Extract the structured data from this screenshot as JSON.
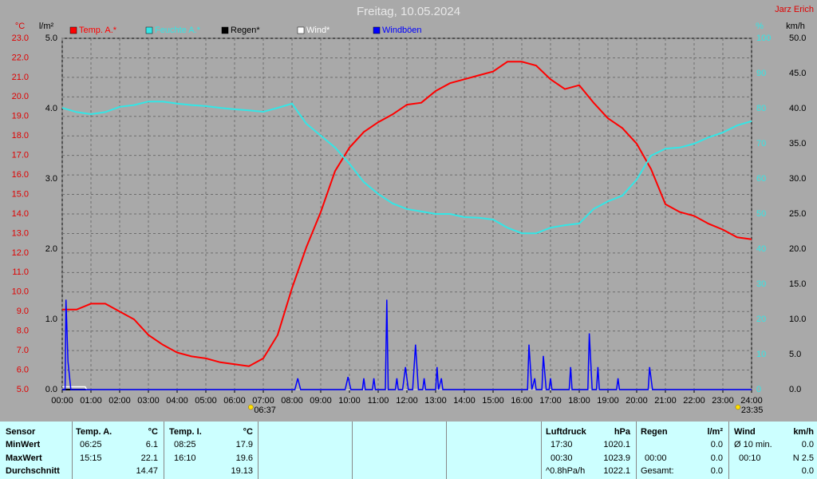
{
  "chart_data": {
    "type": "line",
    "title": "Freitag, 10.05.2024",
    "author": "Jarz Erich",
    "axis_units": {
      "y": "°C",
      "y2": "l/m²",
      "y3": "%",
      "y4": "km/h"
    },
    "x": [
      0,
      0.5,
      1,
      1.5,
      2,
      2.5,
      3,
      3.5,
      4,
      4.5,
      5,
      5.5,
      6,
      6.5,
      7,
      7.5,
      8,
      8.5,
      9,
      9.5,
      10,
      10.5,
      11,
      11.5,
      12,
      12.5,
      13,
      13.5,
      14,
      14.5,
      15,
      15.5,
      16,
      16.5,
      17,
      17.5,
      18,
      18.5,
      19,
      19.5,
      20,
      20.5,
      21,
      21.5,
      22,
      22.5,
      23,
      23.5,
      24
    ],
    "xlim": [
      0,
      24
    ],
    "xticks": [
      {
        "value": 0,
        "label": "00:00"
      },
      {
        "value": 1,
        "label": "01:00"
      },
      {
        "value": 2,
        "label": "02:00"
      },
      {
        "value": 3,
        "label": "03:00"
      },
      {
        "value": 4,
        "label": "04:00"
      },
      {
        "value": 5,
        "label": "05:00"
      },
      {
        "value": 6,
        "label": "06:00"
      },
      {
        "value": 7,
        "label": "07:00"
      },
      {
        "value": 8,
        "label": "08:00"
      },
      {
        "value": 9,
        "label": "09:00"
      },
      {
        "value": 10,
        "label": "10:00"
      },
      {
        "value": 11,
        "label": "11:00"
      },
      {
        "value": 12,
        "label": "12:00"
      },
      {
        "value": 13,
        "label": "13:00"
      },
      {
        "value": 14,
        "label": "14:00"
      },
      {
        "value": 15,
        "label": "15:00"
      },
      {
        "value": 16,
        "label": "16:00"
      },
      {
        "value": 17,
        "label": "17:00"
      },
      {
        "value": 18,
        "label": "18:00"
      },
      {
        "value": 19,
        "label": "19:00"
      },
      {
        "value": 20,
        "label": "20:00"
      },
      {
        "value": 21,
        "label": "21:00"
      },
      {
        "value": 22,
        "label": "22:00"
      },
      {
        "value": 23,
        "label": "23:00"
      },
      {
        "value": 24,
        "label": "24:00"
      }
    ],
    "ylim": [
      5,
      23
    ],
    "yticks": [
      {
        "value": 5,
        "label": "5.0"
      },
      {
        "value": 6,
        "label": "6.0"
      },
      {
        "value": 7,
        "label": "7.0"
      },
      {
        "value": 8,
        "label": "8.0"
      },
      {
        "value": 9,
        "label": "9.0"
      },
      {
        "value": 10,
        "label": "10.0"
      },
      {
        "value": 11,
        "label": "11.0"
      },
      {
        "value": 12,
        "label": "12.0"
      },
      {
        "value": 13,
        "label": "13.0"
      },
      {
        "value": 14,
        "label": "14.0"
      },
      {
        "value": 15,
        "label": "15.0"
      },
      {
        "value": 16,
        "label": "16.0"
      },
      {
        "value": 17,
        "label": "17.0"
      },
      {
        "value": 18,
        "label": "18.0"
      },
      {
        "value": 19,
        "label": "19.0"
      },
      {
        "value": 20,
        "label": "20.0"
      },
      {
        "value": 21,
        "label": "21.0"
      },
      {
        "value": 22,
        "label": "22.0"
      },
      {
        "value": 23,
        "label": "23.0"
      }
    ],
    "y2lim": [
      0,
      5
    ],
    "y2ticks": [
      {
        "value": 0,
        "label": "0.0"
      },
      {
        "value": 1,
        "label": "1.0"
      },
      {
        "value": 2,
        "label": "2.0"
      },
      {
        "value": 3,
        "label": "3.0"
      },
      {
        "value": 4,
        "label": "4.0"
      },
      {
        "value": 5,
        "label": "5.0"
      }
    ],
    "y3lim": [
      0,
      100
    ],
    "y3ticks": [
      0,
      10,
      20,
      30,
      40,
      50,
      60,
      70,
      80,
      90,
      100
    ],
    "y4lim": [
      0,
      50
    ],
    "y4ticks": [
      {
        "value": 0,
        "label": "0.0"
      },
      {
        "value": 5,
        "label": "5.0"
      },
      {
        "value": 10,
        "label": "10.0"
      },
      {
        "value": 15,
        "label": "15.0"
      },
      {
        "value": 20,
        "label": "20.0"
      },
      {
        "value": 25,
        "label": "25.0"
      },
      {
        "value": 30,
        "label": "30.0"
      },
      {
        "value": 35,
        "label": "35.0"
      },
      {
        "value": 40,
        "label": "40.0"
      },
      {
        "value": 45,
        "label": "45.0"
      },
      {
        "value": 50,
        "label": "50.0"
      }
    ],
    "grid": true,
    "series": [
      {
        "name": "Temp. A.*",
        "color": "#ff0000",
        "axis": "y",
        "values": [
          9.1,
          9.1,
          9.4,
          9.4,
          9.0,
          8.6,
          7.8,
          7.3,
          6.9,
          6.7,
          6.6,
          6.4,
          6.3,
          6.2,
          6.6,
          7.8,
          10.2,
          12.3,
          14.1,
          16.2,
          17.4,
          18.2,
          18.7,
          19.1,
          19.6,
          19.7,
          20.3,
          20.7,
          20.9,
          21.1,
          21.3,
          21.8,
          21.8,
          21.6,
          20.9,
          20.4,
          20.6,
          19.7,
          18.9,
          18.4,
          17.6,
          16.3,
          14.5,
          14.1,
          13.9,
          13.5,
          13.2,
          12.8,
          12.7
        ]
      },
      {
        "name": "Feuchte A.*",
        "color": "#33e6e6",
        "axis": "y3",
        "values": [
          80.2,
          79,
          78.4,
          79,
          80.5,
          81,
          82,
          82,
          81.4,
          81,
          80.7,
          80.2,
          79.8,
          79.5,
          79.1,
          80.2,
          81.4,
          75.7,
          72.3,
          68.9,
          64.3,
          59.1,
          55.7,
          53,
          51.4,
          50.7,
          50,
          50,
          49.1,
          48.9,
          48.4,
          46.1,
          44.5,
          44.5,
          46.1,
          46.8,
          47.3,
          51.4,
          53.6,
          55.2,
          59.8,
          66.6,
          68.6,
          68.9,
          70,
          71.8,
          73.2,
          75.2,
          76.4
        ]
      },
      {
        "name": "Regen*",
        "color": "#000000",
        "axis": "y2",
        "x": [
          0,
          24
        ],
        "values": [
          0,
          0
        ]
      },
      {
        "name": "Wind*",
        "color": "#ffffff",
        "axis": "y4",
        "x": [
          0,
          0.8,
          0.85,
          24
        ],
        "values": [
          0.4,
          0.4,
          0,
          0
        ]
      },
      {
        "name": "Windböen",
        "color": "#0000ff",
        "axis": "y4",
        "x": [
          0,
          0.1,
          0.13,
          0.2,
          0.3,
          8.1,
          8.2,
          8.3,
          9.85,
          9.95,
          10.05,
          10.45,
          10.5,
          10.55,
          10.8,
          10.85,
          10.9,
          11.25,
          11.3,
          11.35,
          11.6,
          11.65,
          11.7,
          11.85,
          11.95,
          12.05,
          12.2,
          12.3,
          12.4,
          12.55,
          12.6,
          12.65,
          13.0,
          13.05,
          13.1,
          13.2,
          13.25,
          16.2,
          16.25,
          16.35,
          16.45,
          16.5,
          16.7,
          16.75,
          16.85,
          16.95,
          17.0,
          17.05,
          17.65,
          17.7,
          17.75,
          18.3,
          18.35,
          18.45,
          18.6,
          18.65,
          18.7,
          19.3,
          19.35,
          19.4,
          20.4,
          20.45,
          20.55,
          24
        ],
        "values": [
          0,
          0,
          12.8,
          4,
          0,
          0,
          1.6,
          0,
          0,
          1.8,
          0,
          0,
          1.6,
          0,
          0,
          1.6,
          0,
          0,
          12.8,
          0,
          0,
          1.6,
          0,
          0,
          3.2,
          0,
          0,
          6.4,
          0,
          0,
          1.6,
          0,
          0,
          3.2,
          0,
          1.6,
          0,
          0,
          6.4,
          0,
          1.6,
          0,
          0,
          4.8,
          0,
          0,
          1.6,
          0,
          0,
          3.2,
          0,
          0,
          8,
          0,
          0,
          3.2,
          0,
          0,
          1.6,
          0,
          0,
          3.2,
          0,
          0
        ]
      }
    ],
    "annotations": [
      {
        "text": "06:37",
        "x": 6.62
      },
      {
        "text": "23:35",
        "x": 23.58
      }
    ]
  },
  "table": {
    "header": {
      "sensor": "Sensor",
      "temp_a": "Temp. A.",
      "temp_a_unit": "°C",
      "temp_i": "Temp. I.",
      "temp_i_unit": "°C",
      "pressure": "Luftdruck",
      "pressure_unit": "hPa",
      "rain": "Regen",
      "rain_unit": "l/m²",
      "wind": "Wind",
      "wind_unit": "km/h"
    },
    "rows": [
      {
        "label": "MinWert",
        "temp_a_time": "06:25",
        "temp_a": "6.1",
        "temp_i_time": "08:25",
        "temp_i": "17.9",
        "pressure_time": "17:30",
        "pressure": "1020.1",
        "rain": "0.0",
        "wind_label": "Ø 10 min.",
        "wind": "0.0"
      },
      {
        "label": "MaxWert",
        "temp_a_time": "15:15",
        "temp_a": "22.1",
        "temp_i_time": "16:10",
        "temp_i": "19.6",
        "pressure_time": "00:30",
        "pressure": "1023.9",
        "rain_time": "00:00",
        "rain": "0.0",
        "wind_label": "00:10",
        "wind": "N 2.5"
      },
      {
        "label": "Durchschnitt",
        "temp_a": "14.47",
        "temp_i": "19.13",
        "pressure_time": "^0.8hPa/h",
        "pressure": "1022.1",
        "rain_time": "Gesamt:",
        "rain": "0.0",
        "wind": "0.0"
      }
    ]
  }
}
